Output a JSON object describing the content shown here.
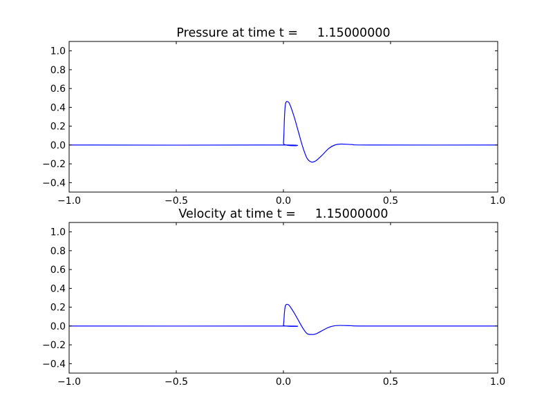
{
  "chart_data": [
    {
      "type": "line",
      "title": "Pressure at time t =     1.15000000",
      "xlabel": "",
      "ylabel": "",
      "xlim": [
        -1.0,
        1.0
      ],
      "ylim": [
        -0.5,
        1.1
      ],
      "xticks": [
        "−1.0",
        "−0.5",
        "0.0",
        "0.5",
        "1.0"
      ],
      "xtick_values": [
        -1.0,
        -0.5,
        0.0,
        0.5,
        1.0
      ],
      "yticks": [
        "−0.4",
        "−0.2",
        "0.0",
        "0.2",
        "0.4",
        "0.6",
        "0.8",
        "1.0"
      ],
      "ytick_values": [
        -0.4,
        -0.2,
        0.0,
        0.2,
        0.4,
        0.6,
        0.8,
        1.0
      ],
      "grid": false,
      "color": "#0000ff",
      "x": [
        -1.0,
        -0.01,
        0.0,
        0.005,
        0.01,
        0.02,
        0.03,
        0.05,
        0.07,
        0.09,
        0.11,
        0.13,
        0.15,
        0.18,
        0.21,
        0.24,
        0.27,
        0.32,
        0.4,
        1.0
      ],
      "y": [
        0,
        0,
        0.02,
        0.3,
        0.44,
        0.46,
        0.43,
        0.3,
        0.14,
        -0.02,
        -0.14,
        -0.18,
        -0.17,
        -0.11,
        -0.04,
        0.0,
        0.01,
        0.005,
        0,
        0
      ]
    },
    {
      "type": "line",
      "title": "Velocity at time t =     1.15000000",
      "xlabel": "",
      "ylabel": "",
      "xlim": [
        -1.0,
        1.0
      ],
      "ylim": [
        -0.5,
        1.1
      ],
      "xticks": [
        "−1.0",
        "−0.5",
        "0.0",
        "0.5",
        "1.0"
      ],
      "xtick_values": [
        -1.0,
        -0.5,
        0.0,
        0.5,
        1.0
      ],
      "yticks": [
        "−0.4",
        "−0.2",
        "0.0",
        "0.2",
        "0.4",
        "0.6",
        "0.8",
        "1.0"
      ],
      "ytick_values": [
        -0.4,
        -0.2,
        0.0,
        0.2,
        0.4,
        0.6,
        0.8,
        1.0
      ],
      "grid": false,
      "color": "#0000ff",
      "x": [
        -1.0,
        -0.01,
        0.0,
        0.005,
        0.01,
        0.02,
        0.03,
        0.05,
        0.07,
        0.09,
        0.11,
        0.13,
        0.15,
        0.18,
        0.21,
        0.24,
        0.27,
        0.32,
        0.4,
        1.0
      ],
      "y": [
        0,
        0,
        0.01,
        0.15,
        0.22,
        0.23,
        0.21,
        0.14,
        0.06,
        -0.02,
        -0.08,
        -0.09,
        -0.085,
        -0.05,
        -0.015,
        0.003,
        0.006,
        0.003,
        0,
        0
      ]
    }
  ]
}
